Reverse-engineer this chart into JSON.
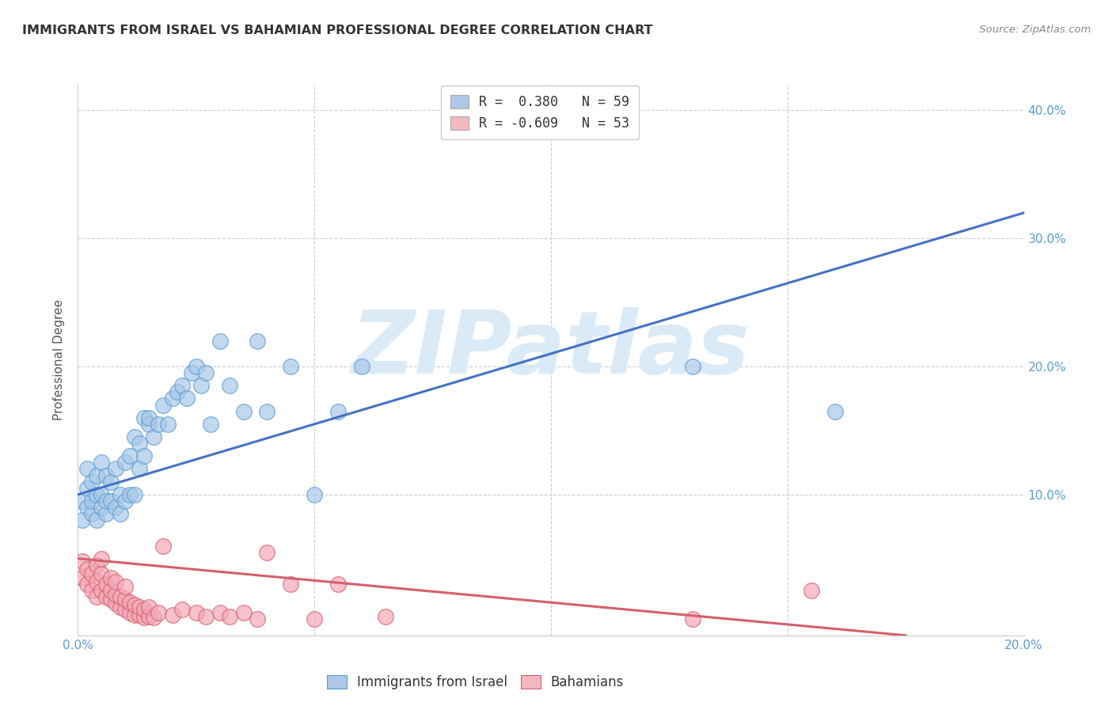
{
  "title": "IMMIGRANTS FROM ISRAEL VS BAHAMIAN PROFESSIONAL DEGREE CORRELATION CHART",
  "source": "Source: ZipAtlas.com",
  "ylabel": "Professional Degree",
  "xlim": [
    0.0,
    0.2
  ],
  "ylim": [
    -0.01,
    0.42
  ],
  "xticks": [
    0.0,
    0.05,
    0.1,
    0.15,
    0.2
  ],
  "xtick_labels": [
    "0.0%",
    "",
    "",
    "",
    "20.0%"
  ],
  "yticks": [
    0.0,
    0.1,
    0.2,
    0.3,
    0.4
  ],
  "ytick_labels_right": [
    "",
    "10.0%",
    "20.0%",
    "30.0%",
    "40.0%"
  ],
  "legend_entries": [
    {
      "label": "R =  0.380   N = 59",
      "color": "#aec6e8"
    },
    {
      "label": "R = -0.609   N = 53",
      "color": "#f4b8c1"
    }
  ],
  "blue_scatter_x": [
    0.001,
    0.001,
    0.002,
    0.002,
    0.002,
    0.003,
    0.003,
    0.003,
    0.004,
    0.004,
    0.004,
    0.005,
    0.005,
    0.005,
    0.006,
    0.006,
    0.006,
    0.007,
    0.007,
    0.008,
    0.008,
    0.009,
    0.009,
    0.01,
    0.01,
    0.011,
    0.011,
    0.012,
    0.012,
    0.013,
    0.013,
    0.014,
    0.014,
    0.015,
    0.015,
    0.016,
    0.017,
    0.018,
    0.019,
    0.02,
    0.021,
    0.022,
    0.023,
    0.024,
    0.025,
    0.026,
    0.027,
    0.028,
    0.03,
    0.032,
    0.035,
    0.038,
    0.04,
    0.045,
    0.05,
    0.055,
    0.06,
    0.13,
    0.16
  ],
  "blue_scatter_y": [
    0.095,
    0.08,
    0.09,
    0.105,
    0.12,
    0.085,
    0.095,
    0.11,
    0.08,
    0.1,
    0.115,
    0.09,
    0.1,
    0.125,
    0.085,
    0.095,
    0.115,
    0.095,
    0.11,
    0.09,
    0.12,
    0.085,
    0.1,
    0.095,
    0.125,
    0.1,
    0.13,
    0.1,
    0.145,
    0.12,
    0.14,
    0.13,
    0.16,
    0.155,
    0.16,
    0.145,
    0.155,
    0.17,
    0.155,
    0.175,
    0.18,
    0.185,
    0.175,
    0.195,
    0.2,
    0.185,
    0.195,
    0.155,
    0.22,
    0.185,
    0.165,
    0.22,
    0.165,
    0.2,
    0.1,
    0.165,
    0.2,
    0.2,
    0.165
  ],
  "pink_scatter_x": [
    0.001,
    0.001,
    0.002,
    0.002,
    0.003,
    0.003,
    0.004,
    0.004,
    0.004,
    0.005,
    0.005,
    0.005,
    0.006,
    0.006,
    0.007,
    0.007,
    0.007,
    0.008,
    0.008,
    0.008,
    0.009,
    0.009,
    0.01,
    0.01,
    0.01,
    0.011,
    0.011,
    0.012,
    0.012,
    0.013,
    0.013,
    0.014,
    0.014,
    0.015,
    0.015,
    0.016,
    0.017,
    0.018,
    0.02,
    0.022,
    0.025,
    0.027,
    0.03,
    0.032,
    0.035,
    0.038,
    0.04,
    0.045,
    0.05,
    0.055,
    0.065,
    0.13,
    0.155
  ],
  "pink_scatter_y": [
    0.035,
    0.048,
    0.03,
    0.042,
    0.025,
    0.038,
    0.02,
    0.032,
    0.045,
    0.025,
    0.038,
    0.05,
    0.02,
    0.03,
    0.018,
    0.025,
    0.035,
    0.015,
    0.022,
    0.032,
    0.012,
    0.02,
    0.01,
    0.018,
    0.028,
    0.008,
    0.016,
    0.006,
    0.014,
    0.006,
    0.012,
    0.004,
    0.01,
    0.005,
    0.012,
    0.004,
    0.008,
    0.06,
    0.006,
    0.01,
    0.008,
    0.005,
    0.008,
    0.005,
    0.008,
    0.003,
    0.055,
    0.03,
    0.003,
    0.03,
    0.005,
    0.003,
    0.025
  ],
  "blue_line_x": [
    0.0,
    0.2
  ],
  "blue_line_y": [
    0.1,
    0.32
  ],
  "pink_line_x": [
    0.0,
    0.175
  ],
  "pink_line_y": [
    0.05,
    -0.01
  ],
  "blue_color": "#a8c8e8",
  "pink_color": "#f4a8b8",
  "blue_edge_color": "#5b9bd5",
  "pink_edge_color": "#d4606a",
  "blue_line_color": "#4472c4",
  "pink_line_color": "#d4606a",
  "watermark": "ZIPatlas",
  "watermark_color": "#daeaf7",
  "title_color": "#333333",
  "axis_tick_color": "#5b9bd5",
  "grid_color": "#cccccc",
  "background_color": "#ffffff"
}
